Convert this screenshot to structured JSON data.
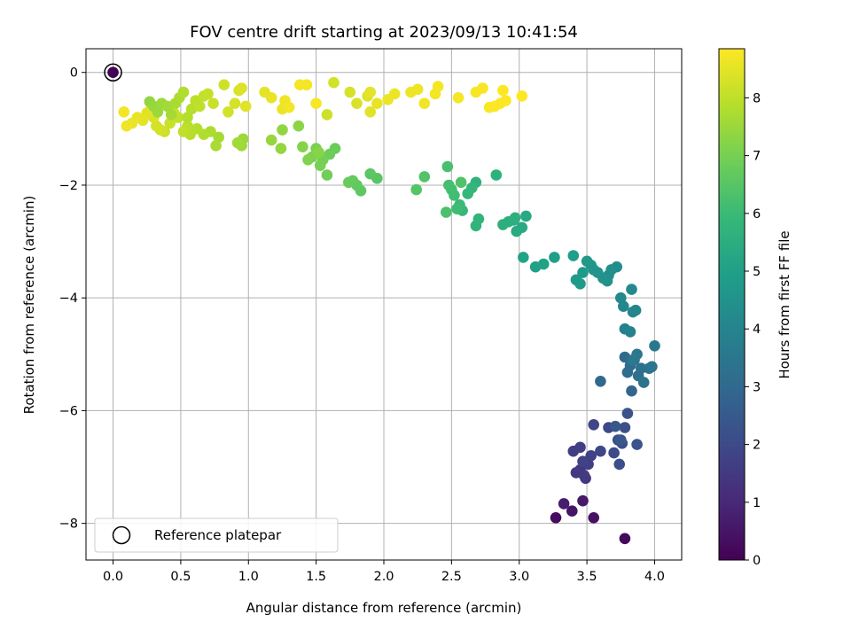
{
  "chart_data": {
    "type": "scatter",
    "title": "FOV centre drift starting at 2023/09/13 10:41:54",
    "xlabel": "Angular distance from reference (arcmin)",
    "ylabel": "Rotation from reference (arcmin)",
    "xlim": [
      -0.2,
      4.2
    ],
    "ylim": [
      -8.65,
      0.42
    ],
    "xticks": [
      0.0,
      0.5,
      1.0,
      1.5,
      2.0,
      2.5,
      3.0,
      3.5,
      4.0
    ],
    "xtick_labels": [
      "0.0",
      "0.5",
      "1.0",
      "1.5",
      "2.0",
      "2.5",
      "3.0",
      "3.5",
      "4.0"
    ],
    "yticks": [
      0,
      -2,
      -4,
      -6,
      -8
    ],
    "ytick_labels": [
      "0",
      "−2",
      "−4",
      "−6",
      "−8"
    ],
    "grid": true,
    "legend": {
      "placement": "lower-left",
      "label": "Reference platepar"
    },
    "reference_point": {
      "x": 0.0,
      "y": 0.0,
      "color_value": 0.0
    },
    "colorbar": {
      "label": "Hours from first FF file",
      "colormap": "viridis",
      "min": 0.0,
      "max": 8.85,
      "ticks": [
        0,
        1,
        2,
        3,
        4,
        5,
        6,
        7,
        8
      ],
      "tick_labels": [
        "0",
        "1",
        "2",
        "3",
        "4",
        "5",
        "6",
        "7",
        "8"
      ]
    },
    "series": [
      {
        "value_order": [
          "x",
          "y",
          "hours"
        ],
        "points": [
          [
            3.78,
            -8.27,
            0.2
          ],
          [
            3.27,
            -7.9,
            0.3
          ],
          [
            3.55,
            -7.9,
            0.4
          ],
          [
            3.39,
            -7.78,
            0.5
          ],
          [
            3.47,
            -7.6,
            0.6
          ],
          [
            3.33,
            -7.65,
            0.7
          ],
          [
            3.45,
            -7.05,
            1.4
          ],
          [
            3.49,
            -7.2,
            1.45
          ],
          [
            3.42,
            -7.1,
            1.5
          ],
          [
            3.48,
            -7.15,
            1.55
          ],
          [
            3.4,
            -6.72,
            1.6
          ],
          [
            3.45,
            -6.65,
            1.65
          ],
          [
            3.51,
            -6.95,
            1.7
          ],
          [
            3.53,
            -6.8,
            1.75
          ],
          [
            3.47,
            -6.9,
            1.8
          ],
          [
            3.55,
            -6.25,
            1.85
          ],
          [
            3.6,
            -6.72,
            1.9
          ],
          [
            3.66,
            -6.3,
            1.95
          ],
          [
            3.7,
            -6.75,
            2.0
          ],
          [
            3.73,
            -6.52,
            2.05
          ],
          [
            3.76,
            -6.58,
            2.1
          ],
          [
            3.74,
            -6.95,
            2.15
          ],
          [
            3.78,
            -6.3,
            2.2
          ],
          [
            3.8,
            -6.05,
            2.3
          ],
          [
            3.87,
            -6.6,
            2.35
          ],
          [
            3.71,
            -6.28,
            2.4
          ],
          [
            3.75,
            -6.52,
            2.45
          ],
          [
            3.83,
            -5.65,
            2.9
          ],
          [
            3.6,
            -5.48,
            3.0
          ],
          [
            3.78,
            -5.05,
            3.05
          ],
          [
            3.82,
            -5.2,
            3.1
          ],
          [
            3.8,
            -5.32,
            3.15
          ],
          [
            3.85,
            -5.1,
            3.2
          ],
          [
            3.88,
            -5.38,
            3.25
          ],
          [
            3.9,
            -5.25,
            3.3
          ],
          [
            3.92,
            -5.5,
            3.35
          ],
          [
            3.96,
            -5.25,
            3.4
          ],
          [
            3.98,
            -5.22,
            3.45
          ],
          [
            3.87,
            -5.0,
            3.5
          ],
          [
            4.0,
            -4.85,
            3.55
          ],
          [
            3.84,
            -5.1,
            3.6
          ],
          [
            3.78,
            -4.55,
            3.9
          ],
          [
            3.82,
            -4.6,
            3.95
          ],
          [
            3.84,
            -4.25,
            4.0
          ],
          [
            3.86,
            -4.22,
            4.05
          ],
          [
            3.77,
            -4.15,
            4.1
          ],
          [
            3.75,
            -4.0,
            4.15
          ],
          [
            3.83,
            -3.85,
            4.2
          ],
          [
            3.72,
            -3.45,
            4.3
          ],
          [
            3.68,
            -3.5,
            4.35
          ],
          [
            3.66,
            -3.6,
            4.4
          ],
          [
            3.65,
            -3.7,
            4.45
          ],
          [
            3.62,
            -3.65,
            4.5
          ],
          [
            3.58,
            -3.55,
            4.55
          ],
          [
            3.55,
            -3.5,
            4.6
          ],
          [
            3.53,
            -3.42,
            4.65
          ],
          [
            3.5,
            -3.35,
            4.7
          ],
          [
            3.47,
            -3.55,
            4.75
          ],
          [
            3.45,
            -3.75,
            4.8
          ],
          [
            3.42,
            -3.68,
            4.85
          ],
          [
            3.4,
            -3.25,
            4.9
          ],
          [
            3.26,
            -3.28,
            4.95
          ],
          [
            3.12,
            -3.45,
            5.0
          ],
          [
            3.18,
            -3.4,
            5.05
          ],
          [
            3.03,
            -3.28,
            5.1
          ],
          [
            3.05,
            -2.55,
            5.3
          ],
          [
            3.02,
            -2.75,
            5.35
          ],
          [
            2.98,
            -2.82,
            5.4
          ],
          [
            2.96,
            -2.62,
            5.45
          ],
          [
            2.92,
            -2.65,
            5.5
          ],
          [
            2.88,
            -2.7,
            5.55
          ],
          [
            2.97,
            -2.58,
            5.6
          ],
          [
            2.83,
            -1.82,
            5.65
          ],
          [
            2.68,
            -1.95,
            5.7
          ],
          [
            2.68,
            -2.72,
            5.75
          ],
          [
            2.7,
            -2.6,
            5.8
          ],
          [
            2.65,
            -2.05,
            5.85
          ],
          [
            2.62,
            -2.15,
            5.9
          ],
          [
            2.58,
            -2.45,
            5.95
          ],
          [
            2.56,
            -2.35,
            6.0
          ],
          [
            2.54,
            -2.42,
            6.05
          ],
          [
            2.52,
            -2.18,
            6.1
          ],
          [
            2.5,
            -2.08,
            6.15
          ],
          [
            2.48,
            -2.0,
            6.2
          ],
          [
            2.47,
            -1.67,
            6.25
          ],
          [
            2.46,
            -2.48,
            6.3
          ],
          [
            2.57,
            -1.95,
            6.35
          ],
          [
            2.3,
            -1.85,
            6.4
          ],
          [
            2.24,
            -2.08,
            6.45
          ],
          [
            1.95,
            -1.88,
            6.5
          ],
          [
            1.9,
            -1.8,
            6.55
          ],
          [
            1.83,
            -2.1,
            6.6
          ],
          [
            1.8,
            -2.0,
            6.65
          ],
          [
            1.77,
            -1.92,
            6.7
          ],
          [
            1.74,
            -1.95,
            6.75
          ],
          [
            1.64,
            -1.35,
            6.8
          ],
          [
            1.6,
            -1.45,
            6.85
          ],
          [
            1.58,
            -1.82,
            6.9
          ],
          [
            1.55,
            -1.55,
            6.95
          ],
          [
            1.53,
            -1.65,
            7.0
          ],
          [
            1.5,
            -1.35,
            7.05
          ],
          [
            1.47,
            -1.5,
            7.1
          ],
          [
            1.44,
            -1.55,
            7.15
          ],
          [
            1.4,
            -1.32,
            7.2
          ],
          [
            1.52,
            -1.42,
            7.25
          ],
          [
            1.37,
            -0.95,
            7.3
          ],
          [
            1.25,
            -1.02,
            7.35
          ],
          [
            1.24,
            -1.35,
            7.4
          ],
          [
            1.17,
            -1.2,
            7.45
          ],
          [
            0.96,
            -1.18,
            7.5
          ],
          [
            0.95,
            -1.3,
            7.55
          ],
          [
            0.92,
            -1.25,
            7.6
          ],
          [
            0.78,
            -1.15,
            7.65
          ],
          [
            0.76,
            -1.3,
            7.7
          ],
          [
            0.72,
            -1.05,
            7.75
          ],
          [
            0.67,
            -1.1,
            7.8
          ],
          [
            0.62,
            -1.0,
            7.85
          ],
          [
            0.57,
            -1.1,
            7.9
          ],
          [
            0.55,
            -0.95,
            7.95
          ],
          [
            0.52,
            -1.05,
            8.0
          ],
          [
            0.48,
            -0.8,
            8.05
          ],
          [
            0.45,
            -0.72,
            8.1
          ],
          [
            0.42,
            -0.9,
            8.15
          ],
          [
            0.38,
            -1.05,
            8.2
          ],
          [
            0.35,
            -1.02,
            8.25
          ],
          [
            0.32,
            -0.95,
            8.3
          ],
          [
            0.3,
            -0.8,
            8.35
          ],
          [
            0.28,
            -0.65,
            8.4
          ],
          [
            0.25,
            -0.72,
            8.45
          ],
          [
            0.22,
            -0.85,
            8.5
          ],
          [
            0.18,
            -0.8,
            8.55
          ],
          [
            0.14,
            -0.9,
            8.6
          ],
          [
            0.1,
            -0.95,
            8.65
          ],
          [
            0.08,
            -0.7,
            8.7
          ]
        ]
      },
      {
        "value_order": [
          "x",
          "y",
          "hours"
        ],
        "points": [
          [
            0.27,
            -0.52,
            7.4
          ],
          [
            0.3,
            -0.6,
            7.45
          ],
          [
            0.33,
            -0.7,
            7.5
          ],
          [
            0.36,
            -0.55,
            7.55
          ],
          [
            0.4,
            -0.6,
            7.6
          ],
          [
            0.43,
            -0.75,
            7.65
          ],
          [
            0.46,
            -0.55,
            7.7
          ],
          [
            0.49,
            -0.45,
            7.75
          ],
          [
            0.52,
            -0.35,
            7.8
          ],
          [
            0.55,
            -0.8,
            7.85
          ],
          [
            0.58,
            -0.65,
            7.9
          ],
          [
            0.61,
            -0.5,
            7.95
          ],
          [
            0.64,
            -0.6,
            8.0
          ],
          [
            0.67,
            -0.42,
            8.05
          ],
          [
            0.7,
            -0.38,
            8.1
          ],
          [
            0.74,
            -0.55,
            8.15
          ],
          [
            0.82,
            -0.22,
            8.2
          ],
          [
            0.85,
            -0.7,
            8.25
          ],
          [
            0.9,
            -0.55,
            8.3
          ],
          [
            0.93,
            -0.32,
            8.35
          ],
          [
            0.95,
            -0.28,
            8.4
          ],
          [
            0.98,
            -0.6,
            8.45
          ],
          [
            1.12,
            -0.35,
            8.5
          ],
          [
            1.17,
            -0.45,
            8.55
          ],
          [
            1.25,
            -0.65,
            8.6
          ],
          [
            1.27,
            -0.5,
            8.65
          ],
          [
            1.3,
            -0.62,
            8.7
          ],
          [
            1.38,
            -0.22,
            8.72
          ],
          [
            1.43,
            -0.22,
            8.74
          ],
          [
            1.5,
            -0.55,
            8.76
          ]
        ]
      },
      {
        "value_order": [
          "x",
          "y",
          "hours"
        ],
        "points": [
          [
            1.58,
            -0.75,
            8.2
          ],
          [
            1.63,
            -0.18,
            8.25
          ],
          [
            1.75,
            -0.35,
            8.3
          ],
          [
            1.8,
            -0.55,
            8.35
          ],
          [
            1.88,
            -0.42,
            8.4
          ],
          [
            1.9,
            -0.7,
            8.45
          ],
          [
            1.9,
            -0.35,
            8.5
          ],
          [
            1.95,
            -0.55,
            8.55
          ],
          [
            2.03,
            -0.48,
            8.6
          ],
          [
            2.08,
            -0.38,
            8.62
          ],
          [
            2.2,
            -0.35,
            8.64
          ],
          [
            2.25,
            -0.3,
            8.66
          ],
          [
            2.3,
            -0.55,
            8.68
          ],
          [
            2.38,
            -0.38,
            8.7
          ],
          [
            2.4,
            -0.25,
            8.72
          ],
          [
            2.55,
            -0.45,
            8.74
          ],
          [
            2.68,
            -0.35,
            8.76
          ],
          [
            2.73,
            -0.28,
            8.78
          ],
          [
            2.78,
            -0.62,
            8.8
          ],
          [
            2.82,
            -0.6,
            8.82
          ],
          [
            2.86,
            -0.55,
            8.84
          ],
          [
            2.88,
            -0.32,
            8.84
          ],
          [
            2.9,
            -0.5,
            8.85
          ],
          [
            3.02,
            -0.42,
            8.85
          ]
        ]
      }
    ]
  }
}
